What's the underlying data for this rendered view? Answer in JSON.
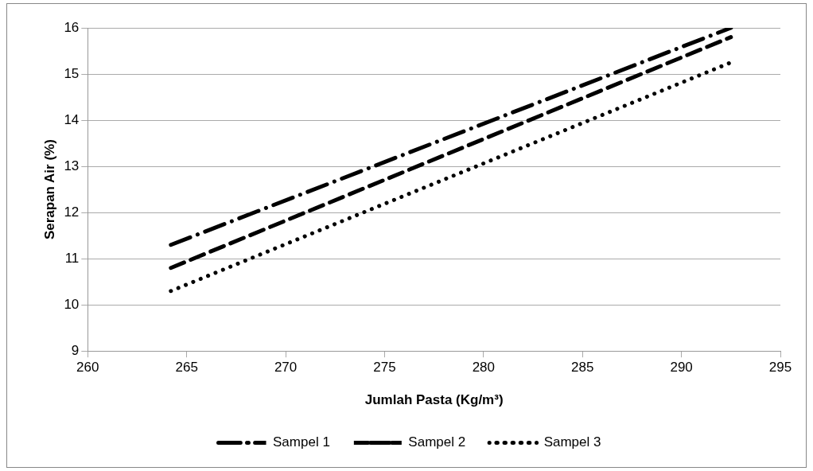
{
  "chart_data": {
    "type": "line",
    "xlabel": "Jumlah Pasta (Kg/m³)",
    "ylabel": "Serapan Air (%)",
    "x": [
      264.2,
      292.5
    ],
    "series": [
      {
        "name": "Sampel 1",
        "color": "#000000",
        "values": [
          11.3,
          16.0
        ],
        "line_style": "dashdot"
      },
      {
        "name": "Sampel 2",
        "color": "#000000",
        "values": [
          10.8,
          15.8
        ],
        "line_style": "dashed"
      },
      {
        "name": "Sampel 3",
        "color": "#000000",
        "values": [
          10.3,
          15.25
        ],
        "line_style": "dotted"
      }
    ],
    "xlim": [
      260,
      295
    ],
    "xticks": [
      260,
      265,
      270,
      275,
      280,
      285,
      290,
      295
    ],
    "ylim": [
      9,
      16
    ],
    "yticks": [
      9,
      10,
      11,
      12,
      13,
      14,
      15,
      16
    ],
    "grid": "y",
    "legend": "bottom",
    "marker": "none"
  }
}
